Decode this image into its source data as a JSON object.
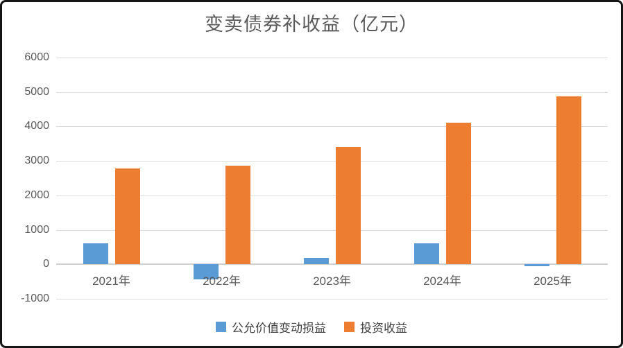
{
  "window": {
    "background": "#ffffff",
    "border_color": "#141414"
  },
  "chart_data": {
    "type": "bar",
    "title": "变卖债券补收益（亿元）",
    "categories": [
      "2021年",
      "2022年",
      "2023年",
      "2024年",
      "2025年"
    ],
    "series": [
      {
        "name": "公允价值变动损益",
        "color": "#5B9BD5",
        "values": [
          600,
          -440,
          190,
          610,
          -50
        ]
      },
      {
        "name": "投资收益",
        "color": "#ED7D31",
        "values": [
          2780,
          2870,
          3410,
          4100,
          4880
        ]
      }
    ],
    "ylim": [
      -1000,
      6000
    ],
    "yticks": [
      6000,
      5000,
      4000,
      3000,
      2000,
      1000,
      0,
      -1000
    ],
    "xlabel": "",
    "ylabel": "",
    "grid": "horizontal",
    "gridline_color": "#dcdcdc",
    "zero_line_color": "#d0d0d0",
    "axis_label_color": "#595959",
    "title_color": "#595959",
    "legend_position": "bottom"
  }
}
